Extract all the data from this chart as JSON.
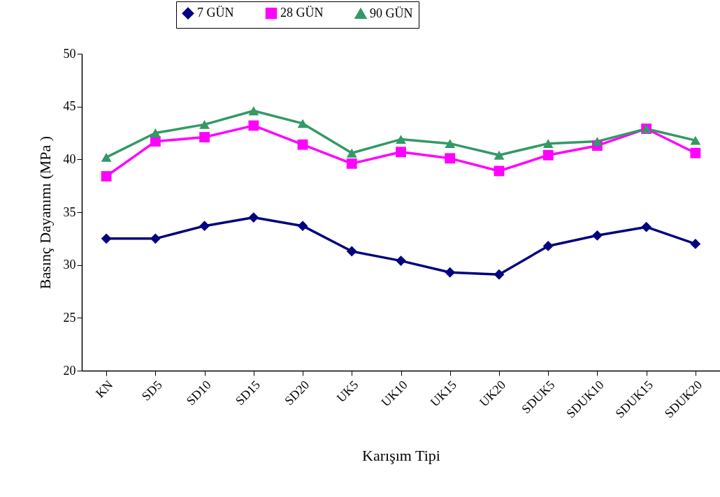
{
  "chart_data": {
    "type": "line",
    "xlabel": "Karışım Tipi",
    "ylabel": "Basınç Dayanımı (MPa )",
    "categories": [
      "KN",
      "SD5",
      "SD10",
      "SD15",
      "SD20",
      "UK5",
      "UK10",
      "UK15",
      "UK20",
      "SDUK5",
      "SDUK10",
      "SDUK15",
      "SDUK20"
    ],
    "series": [
      {
        "name": "7 GÜN",
        "color": "#000080",
        "marker": "diamond",
        "values": [
          32.5,
          32.5,
          33.7,
          34.5,
          33.7,
          31.3,
          30.4,
          29.3,
          29.1,
          31.8,
          32.8,
          33.6,
          32.0
        ]
      },
      {
        "name": "28 GÜN",
        "color": "#ff00ff",
        "marker": "square",
        "values": [
          38.4,
          41.7,
          42.1,
          43.2,
          41.4,
          39.6,
          40.7,
          40.1,
          38.9,
          40.4,
          41.3,
          42.9,
          40.6
        ]
      },
      {
        "name": "90 GÜN",
        "color": "#339966",
        "marker": "triangle",
        "values": [
          40.2,
          42.5,
          43.3,
          44.6,
          43.4,
          40.6,
          41.9,
          41.5,
          40.4,
          41.5,
          41.7,
          42.9,
          41.8
        ]
      }
    ],
    "ylim": [
      20,
      50
    ],
    "yticks": [
      20,
      25,
      30,
      35,
      40,
      45,
      50
    ],
    "grid": false,
    "legend": "top",
    "line_style": "solid"
  }
}
